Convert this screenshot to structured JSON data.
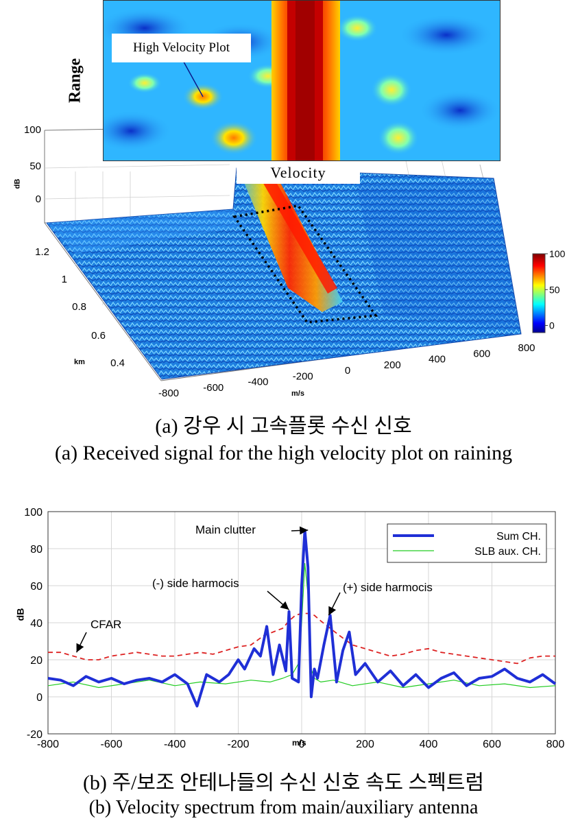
{
  "chart_data": [
    {
      "type": "heatmap",
      "subtype": "3d-surface",
      "panel": "a",
      "zlabel": "dB",
      "z_ticks": [
        "100",
        "50",
        "0"
      ],
      "ylabel": "km",
      "y_ticks": [
        "1.2",
        "1",
        "0.8",
        "0.6",
        "0.4"
      ],
      "xlabel": "m/s",
      "x_ticks": [
        "-800",
        "-600",
        "-400",
        "-200",
        "0",
        "200",
        "400",
        "600",
        "800"
      ],
      "colorbar_ticks": [
        "100",
        "50",
        "0"
      ],
      "colorbar_range": [
        -10,
        100
      ],
      "colormap": "jet",
      "inset": {
        "ylabel": "Range",
        "xlabel": "Velocity",
        "annotation": "High Velocity Plot"
      },
      "caption_ko": "(a) 강우 시 고속플롯 수신 신호",
      "caption_en": "(a) Received signal for the high velocity plot on raining"
    },
    {
      "type": "line",
      "panel": "b",
      "xlabel": "m/s",
      "ylabel": "dB",
      "xlim": [
        -800,
        800
      ],
      "ylim": [
        -20,
        100
      ],
      "x_ticks": [
        -800,
        -600,
        -400,
        -200,
        0,
        200,
        400,
        600,
        800
      ],
      "y_ticks": [
        -20,
        0,
        20,
        40,
        60,
        80,
        100
      ],
      "grid": true,
      "legend_position": "top-right",
      "series": [
        {
          "name": "Sum CH.",
          "color": "#1f2fd6",
          "style": "solid-thick",
          "x": [
            -800,
            -760,
            -720,
            -680,
            -640,
            -600,
            -560,
            -520,
            -480,
            -440,
            -400,
            -360,
            -330,
            -300,
            -260,
            -230,
            -200,
            -180,
            -150,
            -130,
            -110,
            -90,
            -70,
            -50,
            -40,
            -30,
            -10,
            0,
            10,
            20,
            30,
            40,
            50,
            70,
            90,
            110,
            130,
            150,
            170,
            200,
            240,
            280,
            320,
            360,
            400,
            440,
            480,
            520,
            560,
            600,
            640,
            680,
            720,
            760,
            800
          ],
          "y": [
            10,
            9,
            6,
            11,
            8,
            10,
            7,
            9,
            10,
            8,
            12,
            7,
            -5,
            12,
            8,
            12,
            20,
            15,
            26,
            22,
            38,
            12,
            28,
            14,
            46,
            10,
            8,
            60,
            90,
            70,
            0,
            15,
            10,
            28,
            44,
            8,
            25,
            35,
            12,
            18,
            8,
            14,
            6,
            12,
            5,
            10,
            13,
            6,
            10,
            11,
            15,
            10,
            8,
            12,
            7
          ]
        },
        {
          "name": "SLB aux. CH.",
          "color": "#22cc22",
          "style": "solid-thin",
          "x": [
            -800,
            -720,
            -640,
            -560,
            -480,
            -400,
            -320,
            -240,
            -160,
            -100,
            -60,
            -30,
            -10,
            0,
            10,
            20,
            30,
            40,
            60,
            100,
            160,
            240,
            320,
            400,
            480,
            560,
            640,
            720,
            800
          ],
          "y": [
            6,
            8,
            5,
            7,
            9,
            6,
            8,
            7,
            9,
            8,
            10,
            12,
            18,
            40,
            72,
            55,
            15,
            10,
            8,
            9,
            6,
            8,
            5,
            7,
            9,
            6,
            7,
            5,
            6
          ]
        },
        {
          "name": "CFAR",
          "color": "#dd2222",
          "style": "dashed",
          "x": [
            -800,
            -760,
            -720,
            -680,
            -640,
            -600,
            -560,
            -520,
            -480,
            -440,
            -400,
            -360,
            -320,
            -280,
            -240,
            -200,
            -160,
            -120,
            -90,
            -60,
            -40,
            -20,
            0,
            20,
            40,
            60,
            90,
            120,
            160,
            200,
            240,
            280,
            320,
            360,
            400,
            440,
            480,
            520,
            560,
            600,
            640,
            680,
            720,
            760,
            800
          ],
          "y": [
            24,
            24,
            22,
            20,
            20,
            22,
            23,
            24,
            23,
            22,
            22,
            23,
            24,
            23,
            25,
            27,
            28,
            33,
            35,
            37,
            41,
            44,
            45,
            45,
            44,
            41,
            37,
            33,
            28,
            26,
            24,
            22,
            23,
            25,
            26,
            24,
            23,
            22,
            21,
            20,
            19,
            18,
            21,
            22,
            22
          ]
        }
      ],
      "annotations": [
        {
          "text": "Main clutter",
          "x": 20,
          "y": 90
        },
        {
          "text": "(-) side harmocis",
          "x": -40,
          "y": 47
        },
        {
          "text": "(+) side harmocis",
          "x": 85,
          "y": 44
        },
        {
          "text": "CFAR",
          "x": -710,
          "y": 24
        }
      ],
      "caption_ko": "(b) 주/보조 안테나들의 수신 신호 속도 스펙트럼",
      "caption_en": "(b) Velocity spectrum from main/auxiliary antenna"
    }
  ]
}
